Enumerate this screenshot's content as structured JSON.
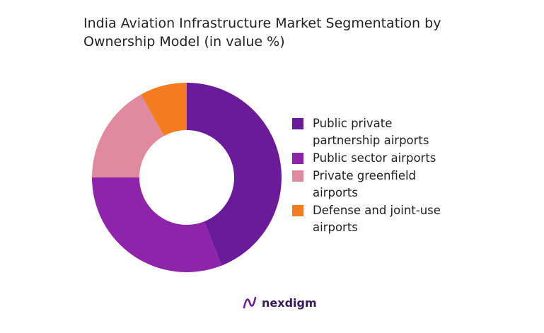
{
  "chart_data": {
    "type": "pie",
    "title": "India Aviation Infrastructure Market Segmentation by Ownership Model (in value %)",
    "categories": [
      "Public private partnership airports",
      "Public sector airports",
      "Private greenfield airports",
      "Defense and joint-use airports"
    ],
    "values": [
      44,
      31,
      17,
      8
    ],
    "colors": [
      "#6a1b9a",
      "#8e24aa",
      "#e08aa0",
      "#f47c20"
    ],
    "donut": true
  },
  "brand": "nexdigm"
}
